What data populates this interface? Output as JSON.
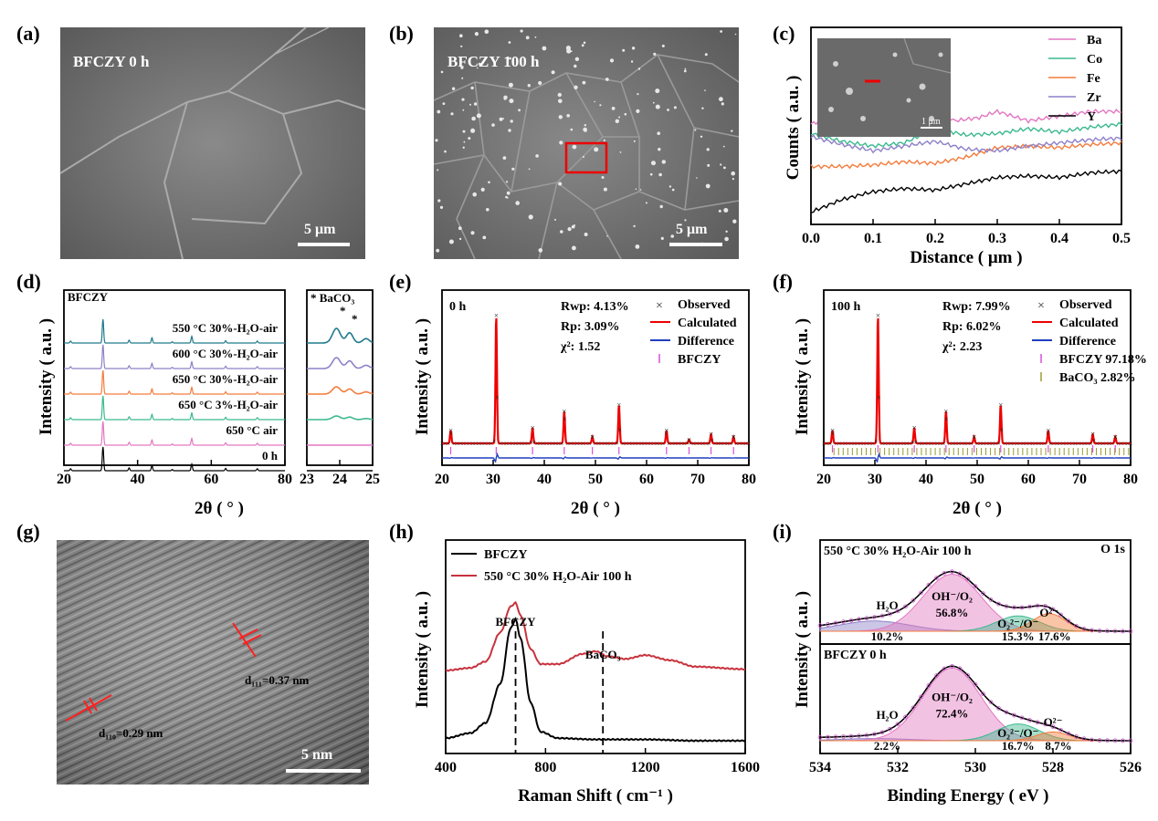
{
  "panels": [
    {
      "id": "a",
      "label": "(a)",
      "micro_label": "BFCZY 0 h",
      "scale_bar": "5 μm"
    },
    {
      "id": "b",
      "label": "(b)",
      "micro_label": "BFCZY 100 h",
      "scale_bar": "5 μm"
    },
    {
      "id": "c",
      "label": "(c)"
    },
    {
      "id": "d",
      "label": "(d)"
    },
    {
      "id": "e",
      "label": "(e)"
    },
    {
      "id": "f",
      "label": "(f)"
    },
    {
      "id": "g",
      "label": "(g)",
      "scale_bar": "5 nm",
      "annotations": [
        "d₁₁₁=0.37 nm",
        "d₁₁₀=0.29 nm"
      ]
    },
    {
      "id": "h",
      "label": "(h)"
    },
    {
      "id": "i",
      "label": "(i)"
    }
  ],
  "chart_data": [
    {
      "panel": "c",
      "type": "line",
      "xlabel": "Distance ( μm )",
      "ylabel": "Counts ( a.u. )",
      "xlim": [
        0,
        0.5
      ],
      "xticks": [
        "0.0",
        "0.1",
        "0.2",
        "0.3",
        "0.4",
        "0.5"
      ],
      "inset": {
        "scale_bar": "1 μm"
      },
      "legend_position": "top-right",
      "series": [
        {
          "name": "Ba",
          "color": "#e377c2",
          "x": [
            0,
            0.03,
            0.06,
            0.08,
            0.1,
            0.13,
            0.16,
            0.2,
            0.23,
            0.27,
            0.3,
            0.35,
            0.4,
            0.45,
            0.5
          ],
          "y": [
            0.58,
            0.62,
            0.72,
            0.74,
            0.66,
            0.62,
            0.63,
            0.7,
            0.6,
            0.62,
            0.66,
            0.6,
            0.63,
            0.66,
            0.66
          ]
        },
        {
          "name": "Co",
          "color": "#3cb98f",
          "x": [
            0,
            0.05,
            0.1,
            0.15,
            0.2,
            0.25,
            0.3,
            0.35,
            0.4,
            0.45,
            0.5
          ],
          "y": [
            0.52,
            0.47,
            0.44,
            0.46,
            0.55,
            0.51,
            0.52,
            0.55,
            0.53,
            0.56,
            0.58
          ]
        },
        {
          "name": "Fe",
          "color": "#f47c3c",
          "x": [
            0,
            0.05,
            0.1,
            0.15,
            0.2,
            0.25,
            0.3,
            0.35,
            0.4,
            0.45,
            0.5
          ],
          "y": [
            0.31,
            0.31,
            0.32,
            0.34,
            0.33,
            0.37,
            0.43,
            0.44,
            0.43,
            0.45,
            0.46
          ]
        },
        {
          "name": "Zr",
          "color": "#8e80c8",
          "x": [
            0,
            0.05,
            0.1,
            0.15,
            0.2,
            0.25,
            0.3,
            0.35,
            0.4,
            0.45,
            0.5
          ],
          "y": [
            0.5,
            0.45,
            0.41,
            0.44,
            0.47,
            0.42,
            0.41,
            0.44,
            0.46,
            0.48,
            0.49
          ]
        },
        {
          "name": "Y",
          "color": "#000000",
          "x": [
            0,
            0.05,
            0.1,
            0.15,
            0.2,
            0.25,
            0.3,
            0.35,
            0.4,
            0.45,
            0.5
          ],
          "y": [
            0.02,
            0.1,
            0.15,
            0.17,
            0.16,
            0.2,
            0.24,
            0.25,
            0.24,
            0.27,
            0.28
          ]
        }
      ]
    },
    {
      "panel": "d",
      "type": "line",
      "xlabel": "2θ ( ° )",
      "ylabel": "Intensity ( a.u. )",
      "title": "BFCZY",
      "xlim": [
        20,
        80
      ],
      "xticks": [
        "20",
        "40",
        "60",
        "80"
      ],
      "peaks": [
        21.8,
        30.6,
        37.7,
        43.9,
        49.4,
        54.7,
        63.9,
        72.5
      ],
      "peak_rel_heights": [
        0.08,
        1.0,
        0.12,
        0.22,
        0.05,
        0.28,
        0.1,
        0.08
      ],
      "series": [
        {
          "name": "550 °C 30%-H₂O-air",
          "color": "#1f7a8c"
        },
        {
          "name": "600 °C 30%-H₂O-air",
          "color": "#8e80c8"
        },
        {
          "name": "650 °C 30%-H₂O-air",
          "color": "#f47c3c"
        },
        {
          "name": "650 °C 3%-H₂O-air",
          "color": "#3cb98f"
        },
        {
          "name": "650 °C air",
          "color": "#e377c2"
        },
        {
          "name": "0 h",
          "color": "#000000"
        }
      ],
      "zoom": {
        "xlim": [
          23,
          25
        ],
        "xticks": [
          "23",
          "24",
          "25"
        ],
        "annotation": "* BaCO₃",
        "peaks": [
          23.9,
          24.3
        ]
      }
    },
    {
      "panel": "e",
      "type": "line",
      "xlabel": "2θ ( ° )",
      "ylabel": "Intensity ( a.u. )",
      "xlim": [
        20,
        80
      ],
      "xticks": [
        "20",
        "30",
        "40",
        "50",
        "60",
        "70",
        "80"
      ],
      "title": "0 h",
      "stats": [
        "Rwp: 4.13%",
        "Rp: 3.09%",
        "χ²: 1.52"
      ],
      "legend": [
        "Observed",
        "Calculated",
        "Difference",
        "BFCZY"
      ],
      "peaks": [
        21.7,
        30.6,
        37.7,
        43.9,
        49.4,
        54.6,
        63.9,
        68.3,
        72.6,
        77.0
      ],
      "peak_rel_heights": [
        0.1,
        1.0,
        0.12,
        0.25,
        0.05,
        0.3,
        0.1,
        0.03,
        0.07,
        0.05
      ]
    },
    {
      "panel": "f",
      "type": "line",
      "xlabel": "2θ ( ° )",
      "ylabel": "Intensity ( a.u. )",
      "xlim": [
        20,
        80
      ],
      "xticks": [
        "20",
        "30",
        "40",
        "50",
        "60",
        "70",
        "80"
      ],
      "title": "100 h",
      "stats": [
        "Rwp: 7.99%",
        "Rp: 6.02%",
        "χ²: 2.23"
      ],
      "legend": [
        "Observed",
        "Calculated",
        "Difference",
        "BFCZY 97.18%",
        "BaCO₃ 2.82%"
      ],
      "peaks": [
        21.7,
        30.6,
        37.7,
        43.9,
        49.4,
        54.6,
        63.9,
        72.6,
        77.0
      ],
      "peak_rel_heights": [
        0.1,
        1.0,
        0.12,
        0.25,
        0.05,
        0.3,
        0.1,
        0.07,
        0.05
      ]
    },
    {
      "panel": "h",
      "type": "line",
      "xlabel": "Raman Shift ( cm⁻¹ )",
      "ylabel": "Intensity ( a.u. )",
      "xlim": [
        400,
        1600
      ],
      "xticks": [
        "400",
        "800",
        "1200",
        "1600"
      ],
      "annotations": [
        "BFCZY",
        "BaCO₃"
      ],
      "ref_lines": [
        680,
        1030
      ],
      "series": [
        {
          "name": "BFCZY",
          "color": "#000000",
          "x": [
            400,
            500,
            560,
            620,
            660,
            680,
            700,
            740,
            780,
            850,
            1000,
            1200,
            1400,
            1600
          ],
          "y": [
            0.02,
            0.06,
            0.14,
            0.45,
            0.88,
            0.95,
            0.8,
            0.3,
            0.07,
            0.02,
            0.01,
            0.01,
            0.0,
            0.0
          ]
        },
        {
          "name": "550 °C 30% H₂O-Air 100 h",
          "color": "#c8323c",
          "x": [
            400,
            500,
            560,
            620,
            660,
            680,
            700,
            740,
            780,
            850,
            950,
            1000,
            1050,
            1120,
            1200,
            1300,
            1400,
            1600
          ],
          "y": [
            0.55,
            0.57,
            0.62,
            0.85,
            1.05,
            1.08,
            0.98,
            0.72,
            0.6,
            0.6,
            0.68,
            0.7,
            0.66,
            0.64,
            0.67,
            0.63,
            0.58,
            0.56
          ]
        }
      ]
    },
    {
      "panel": "i",
      "type": "area",
      "xlabel": "Binding Energy ( eV )",
      "ylabel": "Intensity ( a.u. )",
      "xlim": [
        534,
        526
      ],
      "xticks": [
        "534",
        "532",
        "530",
        "528",
        "526"
      ],
      "title": "O 1s",
      "subplots": [
        {
          "label": "550 °C 30% H₂O-Air 100 h",
          "components": [
            {
              "name": "H₂O",
              "percent": "10.2%",
              "center": 532.6,
              "color": "#8e80c8"
            },
            {
              "name": "OH⁻/O₂",
              "percent": "56.8%",
              "center": 530.6,
              "color": "#e377c2"
            },
            {
              "name": "O₂²⁻/O⁻",
              "percent": "15.3%",
              "center": 528.9,
              "color": "#3cb98f"
            },
            {
              "name": "O²⁻",
              "percent": "17.6%",
              "center": 528.1,
              "color": "#f47c3c"
            }
          ]
        },
        {
          "label": "BFCZY 0 h",
          "components": [
            {
              "name": "H₂O",
              "percent": "2.2%",
              "center": 532.6,
              "color": "#8e80c8"
            },
            {
              "name": "OH⁻/O₂",
              "percent": "72.4%",
              "center": 530.6,
              "color": "#e377c2"
            },
            {
              "name": "O₂²⁻/O⁻",
              "percent": "16.7%",
              "center": 528.9,
              "color": "#3cb98f"
            },
            {
              "name": "O²⁻",
              "percent": "8.7%",
              "center": 528.0,
              "color": "#f47c3c"
            }
          ]
        }
      ]
    }
  ]
}
